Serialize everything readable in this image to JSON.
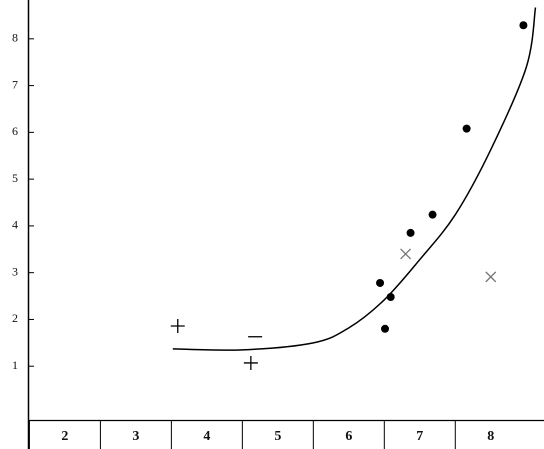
{
  "chart_data": {
    "type": "scatter",
    "xlim": [
      1.48,
      8.75
    ],
    "ylim": [
      -0.15,
      8.83
    ],
    "xticks": [
      2,
      3,
      4,
      5,
      6,
      7,
      8
    ],
    "yticks": [
      1,
      2,
      3,
      4,
      5,
      6,
      7,
      8
    ],
    "series": [
      {
        "marker": "dot",
        "color": "#000000",
        "x": [
          6.44,
          6.51,
          6.59,
          6.87,
          7.18,
          7.66,
          8.46
        ],
        "values": [
          2.78,
          1.8,
          2.48,
          3.85,
          4.24,
          6.08,
          8.29
        ]
      },
      {
        "marker": "plus",
        "color": "#000000",
        "x": [
          3.59,
          4.62
        ],
        "values": [
          1.86,
          1.07
        ]
      },
      {
        "marker": "dash",
        "color": "#000000",
        "x": [
          4.68
        ],
        "values": [
          1.63
        ]
      },
      {
        "marker": "cross",
        "color": "#777777",
        "x": [
          6.8,
          8.0
        ],
        "values": [
          3.4,
          2.91
        ]
      },
      {
        "marker": "line",
        "color": "#000000",
        "x": [
          3.52,
          4.5,
          5.5,
          6.0,
          6.5,
          7.0,
          7.5,
          8.0,
          8.5,
          8.63
        ],
        "values": [
          1.37,
          1.35,
          1.5,
          1.82,
          2.42,
          3.28,
          4.24,
          5.63,
          7.39,
          8.67
        ]
      }
    ]
  }
}
